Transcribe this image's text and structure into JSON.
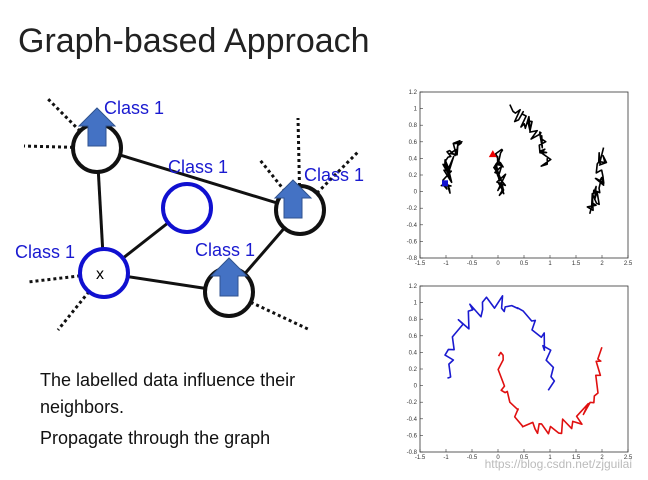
{
  "title": "Graph-based Approach",
  "graph": {
    "node_label": "x",
    "class_labels": [
      "Class 1",
      "Class 1",
      "Class 1",
      "Class 1",
      "Class 1"
    ]
  },
  "text": {
    "lines": [
      "The labelled data influence their",
      "neighbors.",
      "Propagate through the graph"
    ]
  },
  "plots": {
    "xlim": [
      -1.5,
      2.5
    ],
    "ylim": [
      -0.8,
      1.2
    ],
    "xticks": [
      -1.5,
      -1,
      -0.5,
      0,
      0.5,
      1,
      1.5,
      2,
      2.5
    ],
    "yticks": [
      1.2,
      1,
      0.8,
      0.6,
      0.4,
      0.2,
      0,
      -0.2,
      -0.4,
      -0.6,
      -0.8
    ]
  },
  "watermark": "https://blog.csdn.net/zjguilai"
}
